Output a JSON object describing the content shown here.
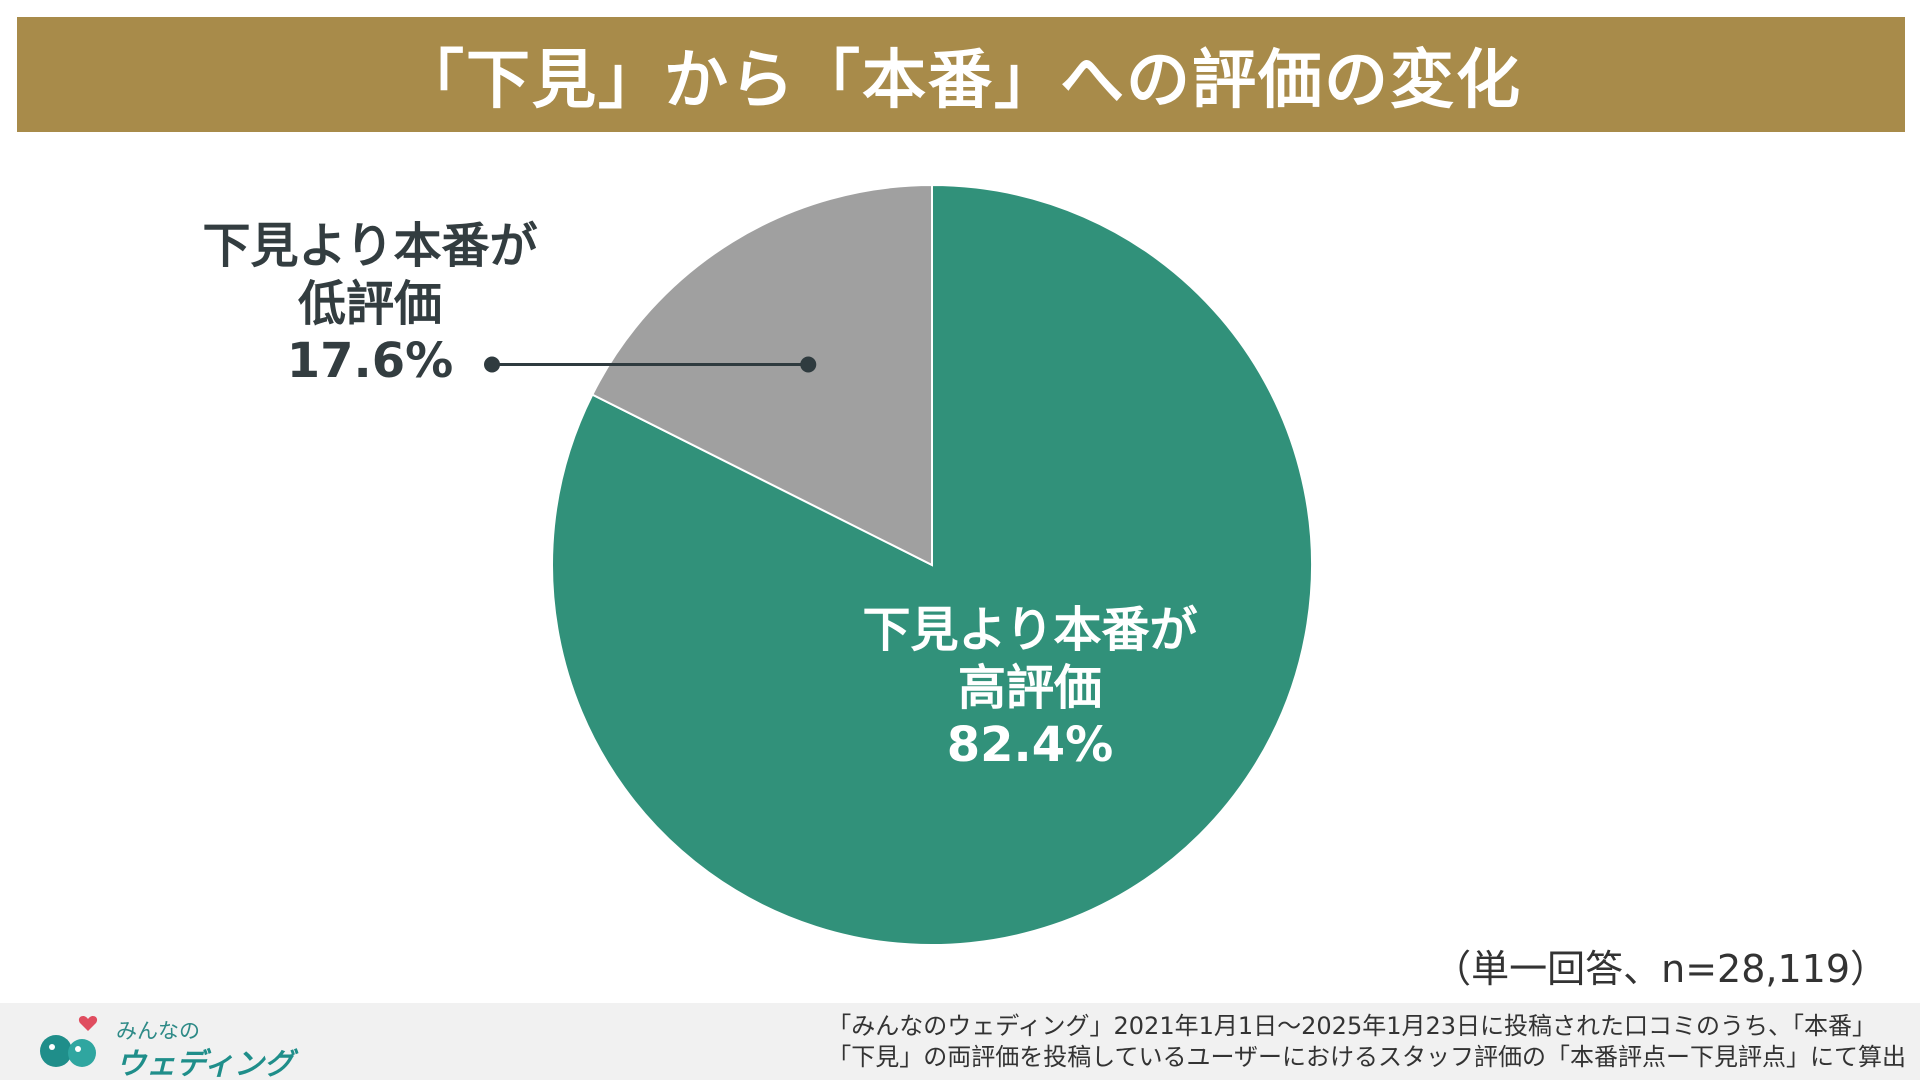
{
  "title": "「下見」から「本番」への評価の変化",
  "chart_data": {
    "type": "pie",
    "title": "「下見」から「本番」への評価の変化",
    "slices": [
      {
        "label_line1": "下見より本番が",
        "label_line2": "高評価",
        "value": 82.4,
        "value_text": "82.4%",
        "color": "#31917a"
      },
      {
        "label_line1": "下見より本番が",
        "label_line2": "低評価",
        "value": 17.6,
        "value_text": "17.6%",
        "color": "#a0a0a0"
      }
    ],
    "start": "12 o'clock, clockwise"
  },
  "note": "（単一回答、n=28,119）",
  "footer": {
    "logo_top": "みんなの",
    "logo_bottom": "ウェディング",
    "source_line1": "「みんなのウェディング」2021年1月1日〜2025年1月23日に投稿された口コミのうち、「本番」",
    "source_line2": "「下見」の両評価を投稿しているユーザーにおけるスタッフ評価の「本番評点ー下見評点」にて算出"
  },
  "colors": {
    "title_bar": "#a88b4a",
    "footer_bg": "#f1f1f1",
    "leader": "#2f3b3f",
    "logo_teal": "#1f8e8a",
    "logo_heart": "#e04d5f"
  }
}
